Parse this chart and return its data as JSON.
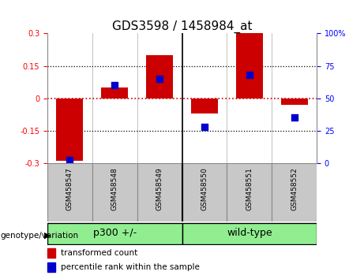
{
  "title": "GDS3598 / 1458984_at",
  "samples": [
    "GSM458547",
    "GSM458548",
    "GSM458549",
    "GSM458550",
    "GSM458551",
    "GSM458552"
  ],
  "red_values": [
    -0.29,
    0.05,
    0.2,
    -0.07,
    0.3,
    -0.03
  ],
  "blue_percentiles": [
    2,
    60,
    65,
    28,
    68,
    35
  ],
  "ylim_left": [
    -0.3,
    0.3
  ],
  "ylim_right": [
    0,
    100
  ],
  "yticks_left": [
    -0.3,
    -0.15,
    0,
    0.15,
    0.3
  ],
  "yticks_right": [
    0,
    25,
    50,
    75,
    100
  ],
  "ytick_right_labels": [
    "0",
    "25",
    "50",
    "75",
    "100%"
  ],
  "bar_color": "#CC0000",
  "dot_color": "#0000CC",
  "zero_line_color": "#CC0000",
  "dotted_line_color": "#000000",
  "bg_color": "#FFFFFF",
  "plot_bg_color": "#FFFFFF",
  "tick_bg_color": "#C8C8C8",
  "group_bg_color": "#90EE90",
  "group_labels": [
    "p300 +/-",
    "wild-type"
  ],
  "group_split": 3,
  "legend_red_label": "transformed count",
  "legend_blue_label": "percentile rank within the sample",
  "genotype_label": "genotype/variation",
  "bar_width": 0.6,
  "title_fontsize": 11,
  "tick_fontsize": 7,
  "sample_fontsize": 6.5,
  "group_fontsize": 9,
  "legend_fontsize": 7.5,
  "genotype_fontsize": 7.5
}
